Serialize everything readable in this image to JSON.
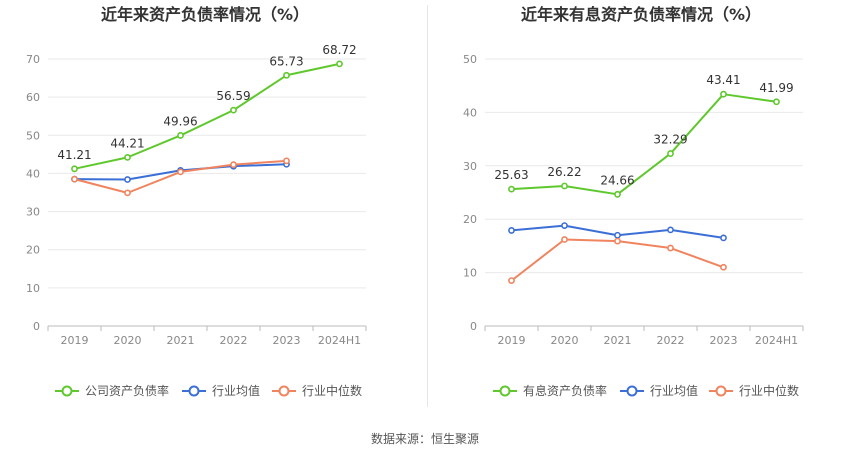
{
  "source_label": "数据来源：恒生聚源",
  "colors": {
    "company": "#5ec82c",
    "industry_avg": "#3b6fd6",
    "industry_median": "#f0845e",
    "grid": "#e9e9e9",
    "axis": "#bbbbbb",
    "tick_text": "#888888",
    "title_text": "#333333",
    "label_text": "#333333",
    "legend_text": "#555555"
  },
  "chart_data": [
    {
      "type": "line",
      "title": "近年来资产负债率情况（%）",
      "categories": [
        "2019",
        "2020",
        "2021",
        "2022",
        "2023",
        "2024H1"
      ],
      "ylim": [
        0,
        70
      ],
      "yticks": [
        0,
        10,
        20,
        30,
        40,
        50,
        60,
        70
      ],
      "grid": true,
      "legend_position": "bottom",
      "series": [
        {
          "name": "公司资产负债率",
          "color_key": "company",
          "values": [
            41.21,
            44.21,
            49.96,
            56.59,
            65.73,
            68.72
          ],
          "labels": [
            "41.21",
            "44.21",
            "49.96",
            "56.59",
            "65.73",
            "68.72"
          ]
        },
        {
          "name": "行业均值",
          "color_key": "industry_avg",
          "values": [
            38.5,
            38.4,
            40.8,
            41.9,
            42.4,
            null
          ]
        },
        {
          "name": "行业中位数",
          "color_key": "industry_median",
          "values": [
            38.5,
            34.9,
            40.4,
            42.3,
            43.3,
            null
          ]
        }
      ]
    },
    {
      "type": "line",
      "title": "近年来有息资产负债率情况（%）",
      "categories": [
        "2019",
        "2020",
        "2021",
        "2022",
        "2023",
        "2024H1"
      ],
      "ylim": [
        0,
        50
      ],
      "yticks": [
        0,
        10,
        20,
        30,
        40,
        50
      ],
      "grid": true,
      "legend_position": "bottom",
      "series": [
        {
          "name": "有息资产负债率",
          "color_key": "company",
          "values": [
            25.63,
            26.22,
            24.66,
            32.29,
            43.41,
            41.99
          ],
          "labels": [
            "25.63",
            "26.22",
            "24.66",
            "32.29",
            "43.41",
            "41.99"
          ]
        },
        {
          "name": "行业均值",
          "color_key": "industry_avg",
          "values": [
            17.9,
            18.8,
            17.0,
            18.0,
            16.5,
            null
          ]
        },
        {
          "name": "行业中位数",
          "color_key": "industry_median",
          "values": [
            8.5,
            16.2,
            15.9,
            14.6,
            11.0,
            null
          ]
        }
      ]
    }
  ]
}
